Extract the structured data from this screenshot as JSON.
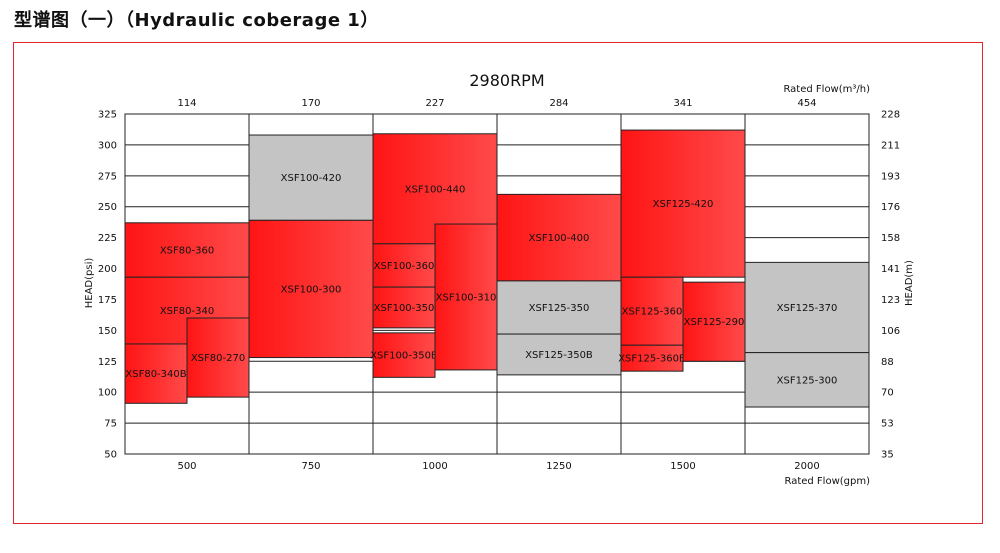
{
  "page": {
    "title": "型谱图（一）（Hydraulic coberage 1）"
  },
  "colors": {
    "frame": "#e2262b",
    "red_fill": "#ff1a1a",
    "red_fill_light": "#ff5a5a",
    "gray_fill": "#c4c4c4",
    "grid": "#222222"
  },
  "chart_data": {
    "type": "range-box coverage chart",
    "title": "2980RPM",
    "xlabel_bottom": "Rated Flow(gpm)",
    "xlabel_top": "Rated Flow(m³/h)",
    "ylabel_left": "HEAD(psi)",
    "ylabel_right": "HEAD(m)",
    "columns": [
      {
        "bottom_label": "500",
        "top_label": "114"
      },
      {
        "bottom_label": "750",
        "top_label": "170"
      },
      {
        "bottom_label": "1000",
        "top_label": "227"
      },
      {
        "bottom_label": "1250",
        "top_label": "284"
      },
      {
        "bottom_label": "1500",
        "top_label": "341"
      },
      {
        "bottom_label": "2000",
        "top_label": "454"
      }
    ],
    "ylim_psi": [
      50,
      325
    ],
    "yticks_left": [
      "325",
      "300",
      "275",
      "250",
      "225",
      "200",
      "175",
      "150",
      "125",
      "100",
      "75",
      "50"
    ],
    "yticks_right": [
      "228",
      "211",
      "193",
      "176",
      "158",
      "141",
      "123",
      "106",
      "88",
      "70",
      "53",
      "35"
    ],
    "models": [
      {
        "name": "XSF80-360",
        "color": "red",
        "col_start": 0,
        "col_end": 1,
        "head_min_psi": 193,
        "head_max_psi": 237
      },
      {
        "name": "XSF80-340",
        "color": "red",
        "col_start": 0,
        "col_end": 1,
        "head_min_psi": 139,
        "head_max_psi": 193
      },
      {
        "name": "XSF80-340B",
        "color": "red",
        "col_start": 0,
        "col_end": 0.5,
        "head_min_psi": 91,
        "head_max_psi": 139
      },
      {
        "name": "XSF80-270",
        "color": "red",
        "col_start": 0.5,
        "col_end": 1,
        "head_min_psi": 96,
        "head_max_psi": 160
      },
      {
        "name": "XSF100-420",
        "color": "gray",
        "col_start": 1,
        "col_end": 2,
        "head_min_psi": 239,
        "head_max_psi": 308
      },
      {
        "name": "XSF100-300",
        "color": "red",
        "col_start": 1,
        "col_end": 2,
        "head_min_psi": 128,
        "head_max_psi": 239
      },
      {
        "name": "XSF100-440",
        "color": "red",
        "col_start": 2,
        "col_end": 3,
        "head_min_psi": 220,
        "head_max_psi": 309
      },
      {
        "name": "XSF100-360",
        "color": "red",
        "col_start": 2,
        "col_end": 2.5,
        "head_min_psi": 185,
        "head_max_psi": 220
      },
      {
        "name": "XSF100-350",
        "color": "red",
        "col_start": 2,
        "col_end": 2.5,
        "head_min_psi": 152,
        "head_max_psi": 185
      },
      {
        "name": "XSF100-350B",
        "color": "red",
        "col_start": 2,
        "col_end": 2.5,
        "head_min_psi": 112,
        "head_max_psi": 148
      },
      {
        "name": "XSF100-310",
        "color": "red",
        "col_start": 2.5,
        "col_end": 3,
        "head_min_psi": 118,
        "head_max_psi": 236
      },
      {
        "name": "XSF100-400",
        "color": "red",
        "col_start": 3,
        "col_end": 4,
        "head_min_psi": 190,
        "head_max_psi": 260
      },
      {
        "name": "XSF125-350",
        "color": "gray",
        "col_start": 3,
        "col_end": 4,
        "head_min_psi": 147,
        "head_max_psi": 190
      },
      {
        "name": "XSF125-350B",
        "color": "gray",
        "col_start": 3,
        "col_end": 4,
        "head_min_psi": 114,
        "head_max_psi": 147
      },
      {
        "name": "XSF125-420",
        "color": "red",
        "col_start": 4,
        "col_end": 5,
        "head_min_psi": 193,
        "head_max_psi": 312
      },
      {
        "name": "XSF125-360",
        "color": "red",
        "col_start": 4,
        "col_end": 4.5,
        "head_min_psi": 138,
        "head_max_psi": 193
      },
      {
        "name": "XSF125-360B",
        "color": "red",
        "col_start": 4,
        "col_end": 4.5,
        "head_min_psi": 117,
        "head_max_psi": 138
      },
      {
        "name": "XSF125-290",
        "color": "red",
        "col_start": 4.5,
        "col_end": 5,
        "head_min_psi": 125,
        "head_max_psi": 189
      },
      {
        "name": "XSF125-370",
        "color": "gray",
        "col_start": 5,
        "col_end": 6,
        "head_min_psi": 132,
        "head_max_psi": 205
      },
      {
        "name": "XSF125-300",
        "color": "gray",
        "col_start": 5,
        "col_end": 6,
        "head_min_psi": 88,
        "head_max_psi": 132
      }
    ]
  }
}
